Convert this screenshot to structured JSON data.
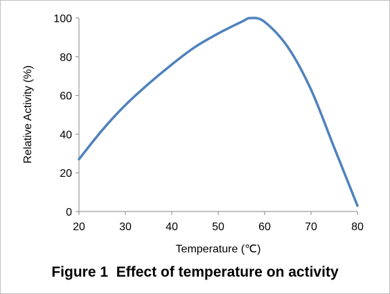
{
  "caption": "Figure 1  Effect of temperature on activity",
  "chart_data": {
    "type": "line",
    "title": "",
    "xlabel": "Temperature (℃)",
    "ylabel": "Relative Activity (%)",
    "xlim": [
      20,
      80
    ],
    "ylim": [
      0,
      100
    ],
    "x_ticks": [
      20,
      30,
      40,
      50,
      60,
      70,
      80
    ],
    "y_ticks": [
      0,
      20,
      40,
      60,
      80,
      100
    ],
    "x_tick_labels": [
      "20",
      "30",
      "40",
      "50",
      "60",
      "70",
      "80"
    ],
    "y_tick_labels": [
      "0",
      "20",
      "40",
      "60",
      "80",
      "100"
    ],
    "grid": false,
    "legend": "none",
    "series": [
      {
        "color": "#4f81bd",
        "x": [
          20,
          25,
          30,
          35,
          40,
          45,
          50,
          55,
          57,
          60,
          65,
          70,
          75,
          80
        ],
        "y": [
          27,
          42,
          55,
          66,
          76,
          85,
          92,
          98,
          100,
          98,
          85,
          63,
          33,
          3
        ]
      }
    ]
  }
}
